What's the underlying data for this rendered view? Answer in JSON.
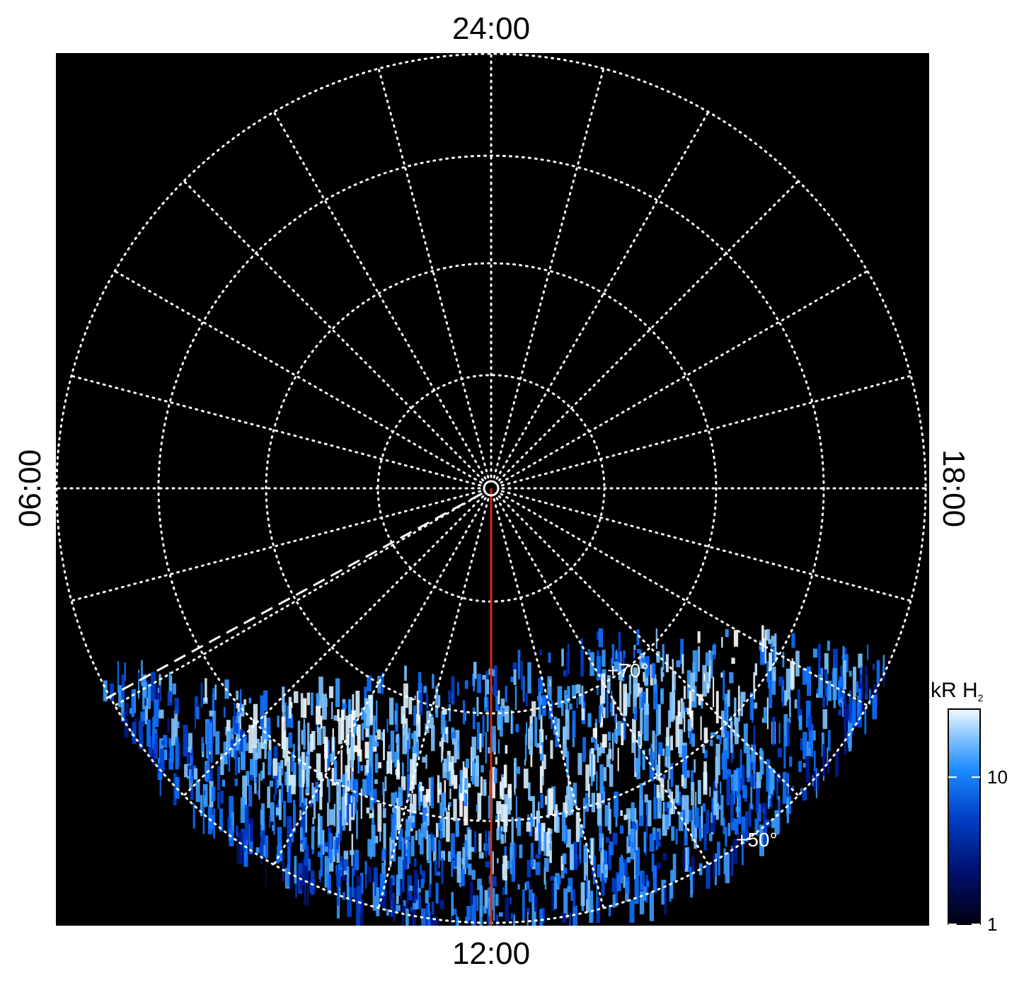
{
  "map": {
    "local_time_labels": {
      "top": "24:00",
      "bottom": "12:00",
      "left": "06:00",
      "right": "18:00"
    },
    "latitude_labels": [
      "+70°",
      "+50°"
    ],
    "colorbar": {
      "title": "kR H",
      "title_sub": "2",
      "log": true,
      "range": [
        1,
        29
      ],
      "ticks": [
        1,
        10
      ]
    }
  }
}
